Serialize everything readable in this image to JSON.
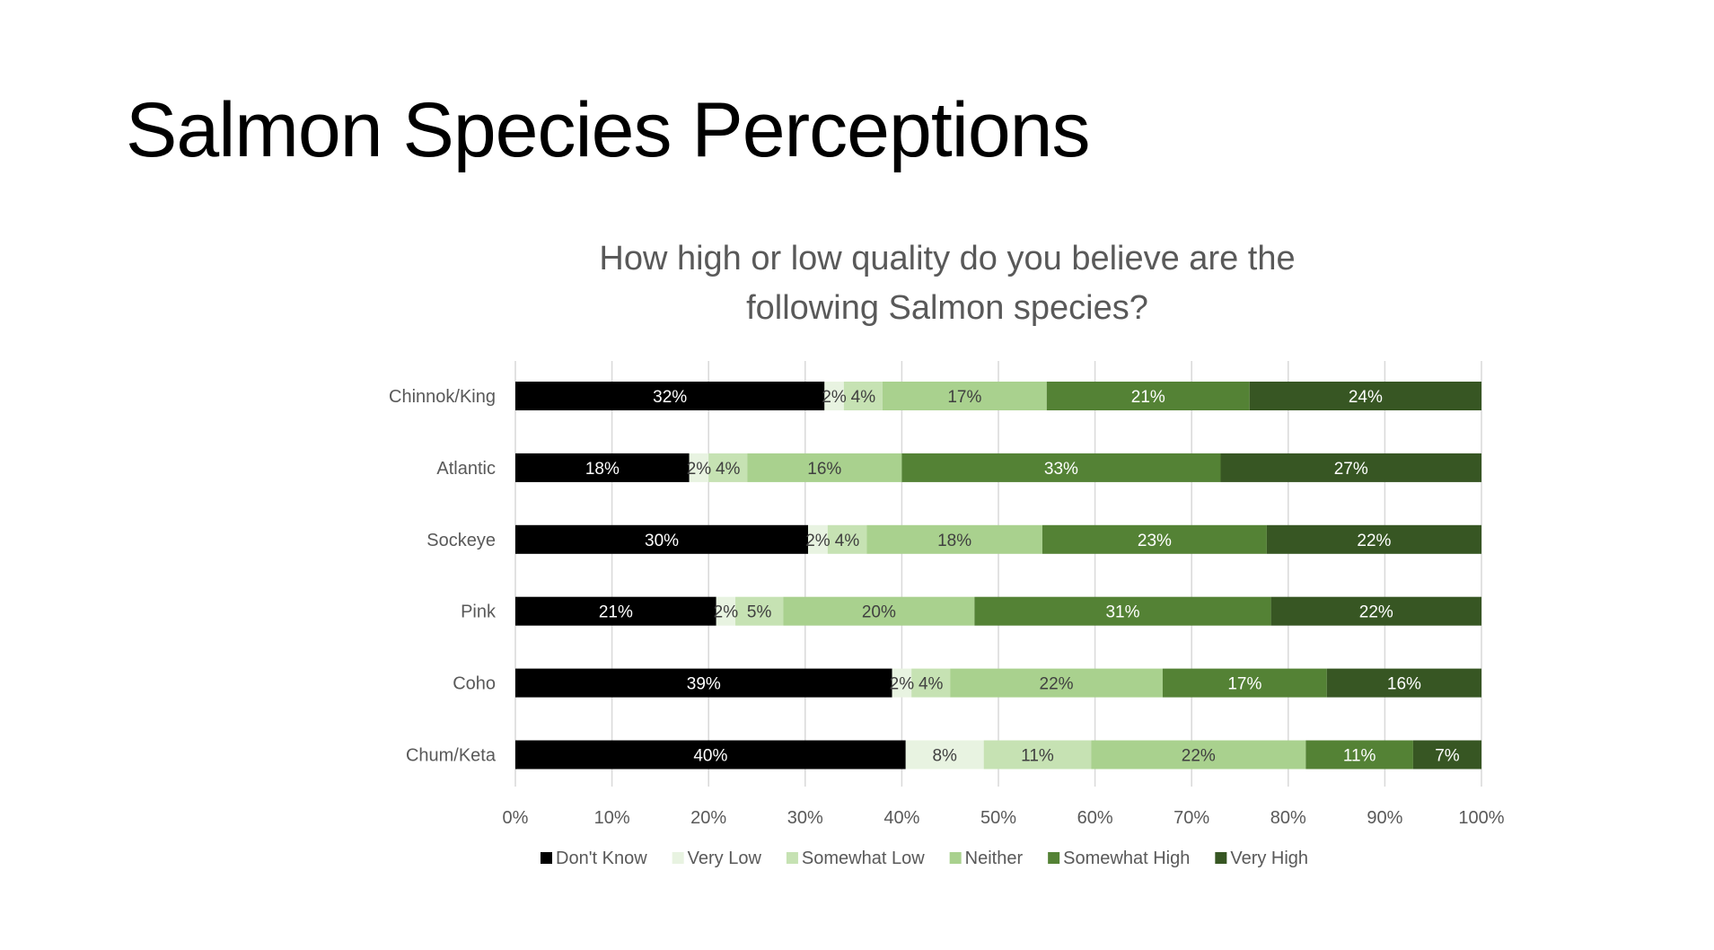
{
  "slide": {
    "title": "Salmon Species Perceptions"
  },
  "chart_data": {
    "type": "bar",
    "orientation": "horizontal",
    "stacked": "percent",
    "title": "How high or low quality do you believe are the following Salmon species?",
    "title_lines": [
      "How high or low quality do you believe are the",
      "following Salmon species?"
    ],
    "categories": [
      "Chinnok/King",
      "Atlantic",
      "Sockeye",
      "Pink",
      "Coho",
      "Chum/Keta"
    ],
    "series": [
      {
        "name": "Don't Know",
        "color": "#000000",
        "label_color": "#ffffff",
        "values": [
          32,
          18,
          30,
          21,
          39,
          40
        ]
      },
      {
        "name": "Very Low",
        "color": "#e8f3e1",
        "label_color": "#404040",
        "values": [
          2,
          2,
          2,
          2,
          2,
          8
        ]
      },
      {
        "name": "Somewhat Low",
        "color": "#c6e2b3",
        "label_color": "#404040",
        "values": [
          4,
          4,
          4,
          5,
          4,
          11
        ]
      },
      {
        "name": "Neither",
        "color": "#a9d18e",
        "label_color": "#404040",
        "values": [
          17,
          16,
          18,
          20,
          22,
          22
        ]
      },
      {
        "name": "Somewhat High",
        "color": "#548235",
        "label_color": "#ffffff",
        "values": [
          21,
          33,
          23,
          31,
          17,
          11
        ]
      },
      {
        "name": "Very High",
        "color": "#375623",
        "label_color": "#ffffff",
        "values": [
          24,
          27,
          22,
          22,
          16,
          7
        ]
      }
    ],
    "xlim": [
      0,
      100
    ],
    "xticks": [
      "0%",
      "10%",
      "20%",
      "30%",
      "40%",
      "50%",
      "60%",
      "70%",
      "80%",
      "90%",
      "100%"
    ],
    "value_suffix": "%",
    "grid": true,
    "legend": "bottom"
  }
}
